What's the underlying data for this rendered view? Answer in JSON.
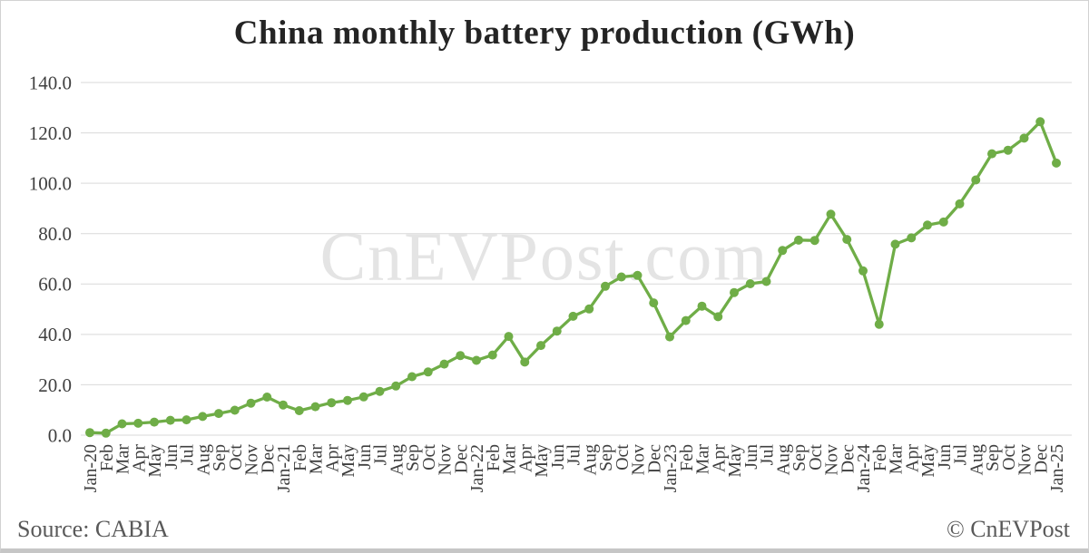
{
  "header": {
    "title": "China monthly battery production (GWh)"
  },
  "watermark": "CnEVPost.com",
  "footer": {
    "source": "Source: CABIA",
    "credit": "© CnEVPost"
  },
  "chart_data": {
    "type": "line",
    "title": "China monthly battery production (GWh)",
    "xlabel": "",
    "ylabel": "",
    "ylim": [
      0,
      140
    ],
    "ytick_step": 20,
    "ytick_labels": [
      "0.0",
      "20.0",
      "40.0",
      "60.0",
      "80.0",
      "100.0",
      "120.0",
      "140.0"
    ],
    "grid": "horizontal",
    "legend": "none",
    "line_color": "#6fad47",
    "marker": "circle",
    "x_labels": [
      "Jan-20",
      "Feb",
      "Mar",
      "Apr",
      "May",
      "Jun",
      "Jul",
      "Aug",
      "Sep",
      "Oct",
      "Nov",
      "Dec",
      "Jan-21",
      "Feb",
      "Mar",
      "Apr",
      "May",
      "Jun",
      "Jul",
      "Aug",
      "Sep",
      "Oct",
      "Nov",
      "Dec",
      "Jan-22",
      "Feb",
      "Mar",
      "Apr",
      "May",
      "Jun",
      "Jul",
      "Aug",
      "Sep",
      "Oct",
      "Nov",
      "Dec",
      "Jan-23",
      "Feb",
      "Mar",
      "Apr",
      "May",
      "Jun",
      "Jul",
      "Aug",
      "Sep",
      "Oct",
      "Nov",
      "Dec",
      "Jan-24",
      "Feb",
      "Mar",
      "Apr",
      "May",
      "Jun",
      "Jul",
      "Aug",
      "Sep",
      "Oct",
      "Nov",
      "Dec",
      "Jan-25"
    ],
    "values": [
      1.0,
      0.8,
      4.5,
      4.7,
      5.2,
      5.9,
      6.1,
      7.4,
      8.6,
      9.9,
      12.7,
      15.1,
      12.0,
      9.7,
      11.3,
      12.9,
      13.8,
      15.2,
      17.4,
      19.5,
      23.2,
      25.1,
      28.2,
      31.6,
      29.7,
      31.8,
      39.2,
      29.0,
      35.6,
      41.3,
      47.2,
      50.1,
      59.1,
      62.8,
      63.4,
      52.5,
      39.0,
      45.5,
      51.2,
      47.0,
      56.6,
      60.1,
      61.0,
      73.3,
      77.4,
      77.3,
      87.7,
      77.7,
      65.2,
      44.0,
      75.8,
      78.3,
      83.4,
      84.6,
      91.8,
      101.3,
      111.7,
      113.1,
      117.9,
      124.4,
      108.0
    ]
  }
}
